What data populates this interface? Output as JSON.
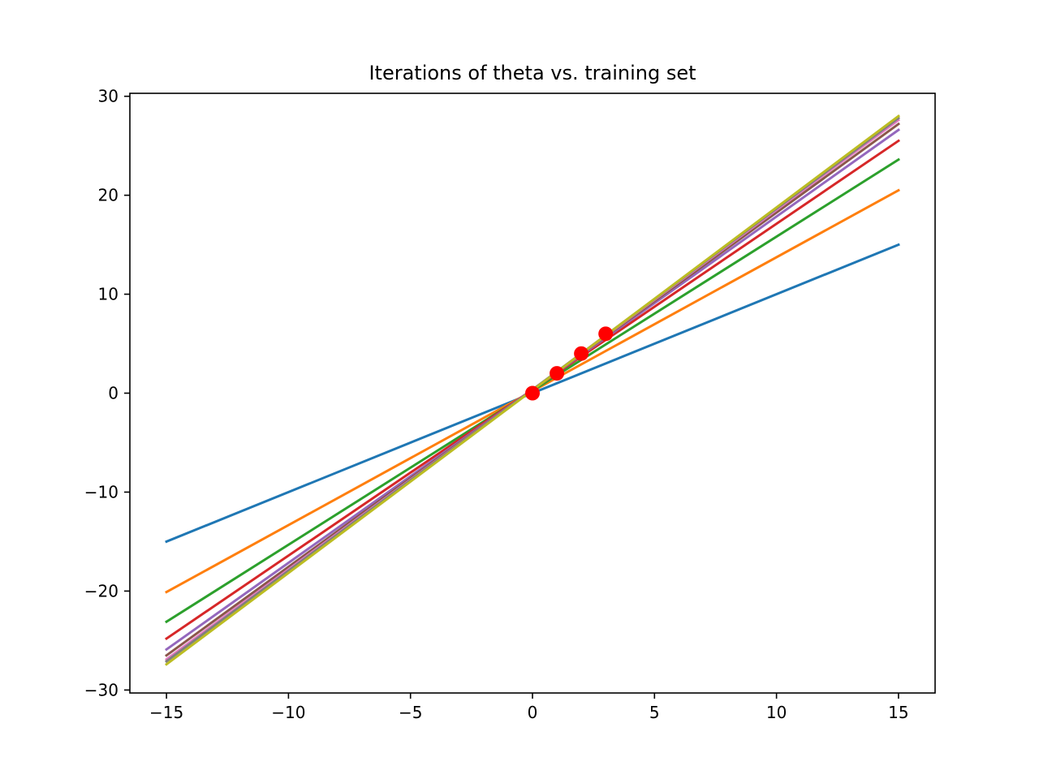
{
  "chart_data": {
    "type": "line",
    "title": "Iterations of theta vs. training set",
    "xlabel": "",
    "ylabel": "",
    "xlim": [
      -16.5,
      16.5
    ],
    "ylim": [
      -30.3,
      30.3
    ],
    "xticks": [
      -15,
      -10,
      -5,
      0,
      5,
      10,
      15
    ],
    "xtick_labels": [
      "−15",
      "−10",
      "−5",
      "0",
      "5",
      "10",
      "15"
    ],
    "yticks": [
      -30,
      -20,
      -10,
      0,
      10,
      20,
      30
    ],
    "ytick_labels": [
      "−30",
      "−20",
      "−10",
      "0",
      "10",
      "20",
      "30"
    ],
    "grid": false,
    "series": [
      {
        "x": [
          -15,
          15
        ],
        "y": [
          -15.0,
          15.0
        ],
        "color": "#1f77b4"
      },
      {
        "x": [
          -15,
          15
        ],
        "y": [
          -20.1,
          20.5
        ],
        "color": "#ff7f0e"
      },
      {
        "x": [
          -15,
          15
        ],
        "y": [
          -23.1,
          23.6
        ],
        "color": "#2ca02c"
      },
      {
        "x": [
          -15,
          15
        ],
        "y": [
          -24.8,
          25.5
        ],
        "color": "#d62728"
      },
      {
        "x": [
          -15,
          15
        ],
        "y": [
          -25.9,
          26.6
        ],
        "color": "#9467bd"
      },
      {
        "x": [
          -15,
          15
        ],
        "y": [
          -26.5,
          27.2
        ],
        "color": "#8c564b"
      },
      {
        "x": [
          -15,
          15
        ],
        "y": [
          -26.9,
          27.6
        ],
        "color": "#e377c2"
      },
      {
        "x": [
          -15,
          15
        ],
        "y": [
          -27.1,
          27.8
        ],
        "color": "#7f7f7f"
      },
      {
        "x": [
          -15,
          15
        ],
        "y": [
          -27.4,
          28.0
        ],
        "color": "#bcbd22"
      }
    ],
    "points": {
      "x": [
        0,
        1,
        2,
        3
      ],
      "y": [
        0,
        2,
        4,
        6
      ],
      "color": "#ff0000"
    }
  }
}
